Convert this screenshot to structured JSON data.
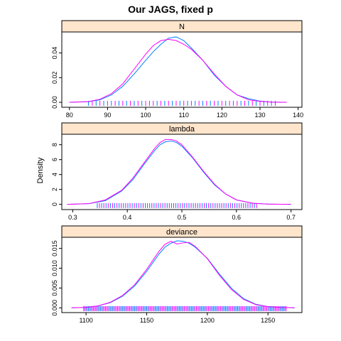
{
  "title": "Our JAGS, fixed p",
  "ylabel": "Density",
  "colors": {
    "strip_fill": "#ffe5cc",
    "chain1": "#0080ff",
    "chain2": "#ff00ff",
    "frame": "#000000"
  },
  "chart_data": [
    {
      "type": "line",
      "strip": "N",
      "xlim": [
        78,
        141
      ],
      "ylim": [
        -0.004,
        0.057
      ],
      "xticks": [
        80,
        90,
        100,
        110,
        120,
        130,
        140
      ],
      "yticks": [
        0.0,
        0.02,
        0.04
      ],
      "ytick_labels": [
        "0.00",
        "0.02",
        "0.04"
      ],
      "rug": {
        "from": 85,
        "to": 134,
        "step": 1
      },
      "series": [
        {
          "x": [
            80,
            85,
            88,
            91,
            94,
            97,
            100,
            102,
            104,
            106,
            108,
            110,
            112,
            115,
            118,
            121,
            124,
            127,
            130,
            133,
            137
          ],
          "values": [
            0.0,
            0.0005,
            0.002,
            0.006,
            0.013,
            0.023,
            0.034,
            0.041,
            0.047,
            0.052,
            0.053,
            0.05,
            0.044,
            0.034,
            0.022,
            0.013,
            0.006,
            0.003,
            0.001,
            0.0002,
            0.0
          ]
        },
        {
          "x": [
            80,
            85,
            88,
            91,
            94,
            97,
            100,
            102,
            104,
            106,
            108,
            110,
            112,
            115,
            118,
            121,
            124,
            127,
            130,
            133,
            137
          ],
          "values": [
            0.0,
            0.0006,
            0.0025,
            0.007,
            0.015,
            0.027,
            0.039,
            0.046,
            0.05,
            0.051,
            0.05,
            0.047,
            0.043,
            0.034,
            0.023,
            0.013,
            0.006,
            0.002,
            0.0008,
            0.0002,
            0.0
          ]
        }
      ]
    },
    {
      "type": "line",
      "strip": "lambda",
      "xlim": [
        0.28,
        0.72
      ],
      "ylim": [
        -0.7,
        9.4
      ],
      "xticks": [
        0.3,
        0.4,
        0.5,
        0.6,
        0.7
      ],
      "yticks": [
        0,
        2,
        4,
        6,
        8
      ],
      "ytick_labels": [
        "0",
        "2",
        "4",
        "6",
        "8"
      ],
      "rug": {
        "from": 0.345,
        "to": 0.64,
        "step": 0.004
      },
      "series": [
        {
          "x": [
            0.29,
            0.33,
            0.36,
            0.39,
            0.41,
            0.43,
            0.45,
            0.46,
            0.47,
            0.48,
            0.49,
            0.5,
            0.52,
            0.54,
            0.56,
            0.58,
            0.6,
            0.63,
            0.66,
            0.7
          ],
          "values": [
            0.0,
            0.1,
            0.5,
            1.8,
            3.3,
            5.3,
            7.2,
            8.0,
            8.4,
            8.5,
            8.3,
            7.8,
            6.2,
            4.3,
            2.6,
            1.4,
            0.6,
            0.15,
            0.03,
            0.0
          ]
        },
        {
          "x": [
            0.29,
            0.33,
            0.36,
            0.39,
            0.41,
            0.43,
            0.45,
            0.46,
            0.47,
            0.48,
            0.49,
            0.5,
            0.52,
            0.54,
            0.56,
            0.58,
            0.6,
            0.63,
            0.66,
            0.7
          ],
          "values": [
            0.0,
            0.1,
            0.6,
            1.9,
            3.5,
            5.5,
            7.5,
            8.3,
            8.7,
            8.7,
            8.5,
            8.0,
            6.3,
            4.4,
            2.7,
            1.4,
            0.6,
            0.15,
            0.03,
            0.0
          ]
        }
      ]
    },
    {
      "type": "line",
      "strip": "deviance",
      "xlim": [
        1080,
        1278
      ],
      "ylim": [
        -0.0012,
        0.0178
      ],
      "xticks": [
        1100,
        1150,
        1200,
        1250
      ],
      "yticks": [
        0.0,
        0.005,
        0.01,
        0.015
      ],
      "ytick_labels": [
        "0.000",
        "0.005",
        "0.010",
        "0.015"
      ],
      "rug": {
        "from": 1098,
        "to": 1265,
        "step": 1
      },
      "series": [
        {
          "x": [
            1088,
            1100,
            1110,
            1120,
            1130,
            1140,
            1150,
            1160,
            1165,
            1170,
            1175,
            1180,
            1185,
            1190,
            1200,
            1210,
            1220,
            1230,
            1240,
            1250,
            1260,
            1272
          ],
          "values": [
            0.0,
            0.0001,
            0.0005,
            0.0013,
            0.0029,
            0.0055,
            0.0092,
            0.0135,
            0.0153,
            0.0163,
            0.0169,
            0.0168,
            0.0163,
            0.0153,
            0.0125,
            0.0085,
            0.0049,
            0.0023,
            0.0009,
            0.0003,
            0.0001,
            0.0
          ]
        },
        {
          "x": [
            1088,
            1100,
            1110,
            1120,
            1130,
            1140,
            1150,
            1160,
            1165,
            1170,
            1175,
            1180,
            1185,
            1190,
            1200,
            1210,
            1220,
            1230,
            1240,
            1250,
            1260,
            1272
          ],
          "values": [
            0.0,
            0.0001,
            0.0005,
            0.0014,
            0.0031,
            0.0058,
            0.0097,
            0.0142,
            0.016,
            0.0168,
            0.0161,
            0.0164,
            0.0165,
            0.0155,
            0.0124,
            0.0082,
            0.0046,
            0.0021,
            0.0008,
            0.0003,
            0.0001,
            0.0
          ]
        }
      ]
    }
  ]
}
